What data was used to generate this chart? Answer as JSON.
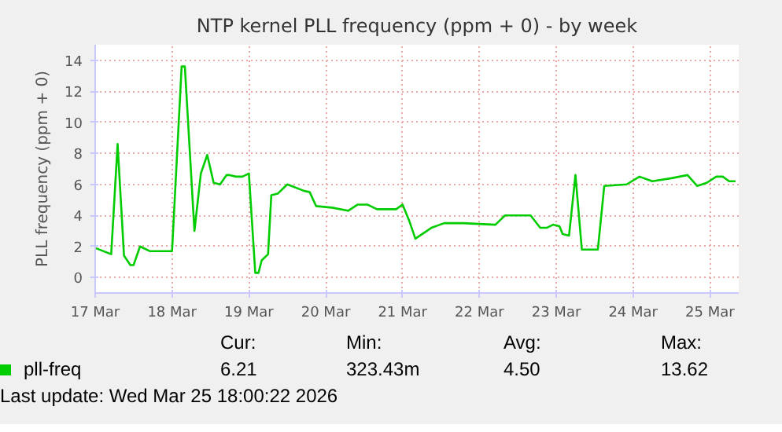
{
  "chart_data": {
    "type": "line",
    "title": "NTP kernel PLL frequency (ppm + 0) - by week",
    "ylabel": "PLL frequency (ppm + 0)",
    "x": [
      "2026-03-17T00:00",
      "2026-03-17T05:00",
      "2026-03-17T07:00",
      "2026-03-17T09:00",
      "2026-03-17T11:00",
      "2026-03-17T12:00",
      "2026-03-17T14:00",
      "2026-03-17T17:00",
      "2026-03-18T00:00",
      "2026-03-18T03:00",
      "2026-03-18T04:00",
      "2026-03-18T07:00",
      "2026-03-18T09:00",
      "2026-03-18T11:00",
      "2026-03-18T13:00",
      "2026-03-18T15:00",
      "2026-03-18T17:00",
      "2026-03-18T18:00",
      "2026-03-18T20:00",
      "2026-03-18T22:00",
      "2026-03-19T00:00",
      "2026-03-19T02:00",
      "2026-03-19T03:00",
      "2026-03-19T04:00",
      "2026-03-19T06:00",
      "2026-03-19T07:00",
      "2026-03-19T09:00",
      "2026-03-19T12:00",
      "2026-03-19T17:00",
      "2026-03-19T19:00",
      "2026-03-19T21:00",
      "2026-03-20T02:00",
      "2026-03-20T07:00",
      "2026-03-20T10:00",
      "2026-03-20T13:00",
      "2026-03-20T16:00",
      "2026-03-20T22:00",
      "2026-03-21T00:00",
      "2026-03-21T02:00",
      "2026-03-21T04:00",
      "2026-03-21T09:00",
      "2026-03-21T13:00",
      "2026-03-21T19:00",
      "2026-03-22T05:00",
      "2026-03-22T08:00",
      "2026-03-22T16:00",
      "2026-03-22T19:00",
      "2026-03-22T21:00",
      "2026-03-22T23:00",
      "2026-03-23T01:00",
      "2026-03-23T02:00",
      "2026-03-23T04:00",
      "2026-03-23T06:00",
      "2026-03-23T08:00",
      "2026-03-23T13:00",
      "2026-03-23T15:00",
      "2026-03-23T22:00",
      "2026-03-24T02:00",
      "2026-03-24T06:00",
      "2026-03-24T12:00",
      "2026-03-24T17:00",
      "2026-03-24T20:00",
      "2026-03-24T23:00",
      "2026-03-25T02:00",
      "2026-03-25T04:00",
      "2026-03-25T06:00",
      "2026-03-25T08:00"
    ],
    "series": [
      {
        "name": "pll-freq",
        "color": "#00cc00",
        "values": [
          1.9,
          1.5,
          8.6,
          1.4,
          0.8,
          0.8,
          2.0,
          1.7,
          1.7,
          13.6,
          13.6,
          3.0,
          6.7,
          7.9,
          6.1,
          6.0,
          6.6,
          6.6,
          6.5,
          6.5,
          6.7,
          0.3,
          0.3,
          1.1,
          1.5,
          5.3,
          5.4,
          6.0,
          5.6,
          5.5,
          4.6,
          4.5,
          4.3,
          4.7,
          4.7,
          4.4,
          4.4,
          4.7,
          3.7,
          2.5,
          3.2,
          3.5,
          3.5,
          3.4,
          4.0,
          4.0,
          3.2,
          3.2,
          3.4,
          3.3,
          2.8,
          2.7,
          6.6,
          1.8,
          1.8,
          5.9,
          6.0,
          6.5,
          6.2,
          6.4,
          6.6,
          5.9,
          6.1,
          6.5,
          6.5,
          6.2,
          6.2
        ]
      }
    ],
    "xlim": [
      "2026-03-17T00:00",
      "2026-03-25T09:00"
    ],
    "xticks": [
      {
        "value": "2026-03-17",
        "label": "17 Mar"
      },
      {
        "value": "2026-03-18",
        "label": "18 Mar"
      },
      {
        "value": "2026-03-19",
        "label": "19 Mar"
      },
      {
        "value": "2026-03-20",
        "label": "20 Mar"
      },
      {
        "value": "2026-03-21",
        "label": "21 Mar"
      },
      {
        "value": "2026-03-22",
        "label": "22 Mar"
      },
      {
        "value": "2026-03-23",
        "label": "23 Mar"
      },
      {
        "value": "2026-03-24",
        "label": "24 Mar"
      },
      {
        "value": "2026-03-25",
        "label": "25 Mar"
      }
    ],
    "ylim": [
      -1,
      15
    ],
    "yticks": [
      0,
      2,
      4,
      6,
      8,
      10,
      12,
      14
    ],
    "grid": true,
    "legend": "bottom",
    "line_style": "solid",
    "marker": "none",
    "annotations": [
      "Cur:",
      "Min:",
      "Avg:",
      "Max:",
      "6.21",
      "323.43m",
      "4.50",
      "13.62",
      "Last update: Wed Mar 25 18:00:22 2026"
    ]
  }
}
